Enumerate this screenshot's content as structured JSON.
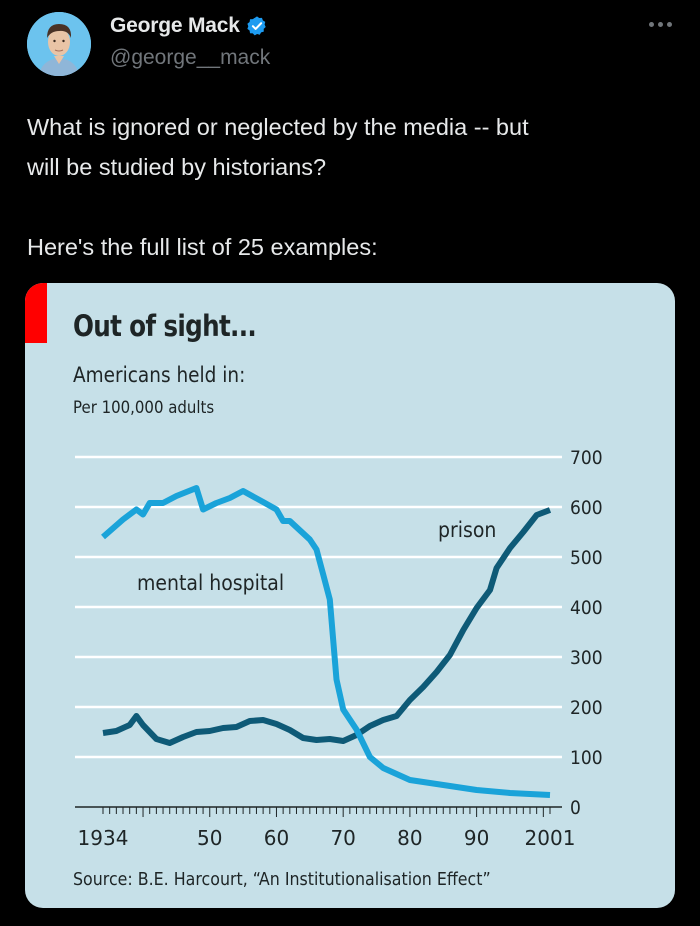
{
  "tweet": {
    "author_name": "George Mack",
    "author_handle": "@george__mack",
    "verified": true,
    "text_lines": [
      "What is ignored or neglected by the media -- but",
      "will be studied by historians?"
    ],
    "text_line_2": "Here's the full list of 25 examples:",
    "more_icon": "more-horizontal-icon"
  },
  "colors": {
    "background": "#000000",
    "verified_badge": "#1d9bf0",
    "chart_background": "#c6e0e8",
    "accent_red": "#ff0000",
    "mental_hospital_line": "#1aa3d9",
    "prison_line": "#0e5a77"
  },
  "chart_data": {
    "type": "line",
    "title": "Out of sight...",
    "subtitle": "Americans held in:",
    "unit_label": "Per 100,000 adults",
    "source": "Source: B.E. Harcourt, “An Institutionalisation Effect”",
    "xlabel": "",
    "ylabel": "",
    "xlim": [
      1934,
      2001
    ],
    "ylim": [
      0,
      700
    ],
    "x_ticks": [
      {
        "value": 1934,
        "label": "1934"
      },
      {
        "value": 1950,
        "label": "50"
      },
      {
        "value": 1960,
        "label": "60"
      },
      {
        "value": 1970,
        "label": "70"
      },
      {
        "value": 1980,
        "label": "80"
      },
      {
        "value": 1990,
        "label": "90"
      },
      {
        "value": 2001,
        "label": "2001"
      }
    ],
    "y_ticks": [
      {
        "value": 0,
        "label": "0"
      },
      {
        "value": 100,
        "label": "100"
      },
      {
        "value": 200,
        "label": "200"
      },
      {
        "value": 300,
        "label": "300"
      },
      {
        "value": 400,
        "label": "400"
      },
      {
        "value": 500,
        "label": "500"
      },
      {
        "value": 600,
        "label": "600"
      },
      {
        "value": 700,
        "label": "700"
      }
    ],
    "grid": true,
    "legend": "inline-labels",
    "series": [
      {
        "name": "mental hospital",
        "label_position": "left-of-line",
        "x": [
          1934,
          1937,
          1939,
          1940,
          1941,
          1943,
          1945,
          1948,
          1949,
          1951,
          1953,
          1955,
          1958,
          1960,
          1961,
          1962,
          1965,
          1966,
          1967,
          1968,
          1969,
          1970,
          1972,
          1974,
          1976,
          1980,
          1985,
          1990,
          1995,
          2001
        ],
        "values": [
          540,
          575,
          595,
          585,
          608,
          608,
          622,
          638,
          595,
          608,
          618,
          632,
          610,
          595,
          572,
          572,
          535,
          515,
          465,
          415,
          255,
          195,
          155,
          100,
          78,
          54,
          44,
          34,
          28,
          24
        ]
      },
      {
        "name": "prison",
        "label_position": "left-of-line-top",
        "x": [
          1934,
          1936,
          1938,
          1939,
          1940,
          1942,
          1944,
          1946,
          1948,
          1950,
          1952,
          1954,
          1956,
          1958,
          1960,
          1962,
          1964,
          1966,
          1968,
          1970,
          1972,
          1974,
          1976,
          1978,
          1980,
          1982,
          1984,
          1986,
          1988,
          1990,
          1992,
          1993,
          1995,
          1997,
          1999,
          2001
        ],
        "values": [
          148,
          152,
          164,
          182,
          164,
          136,
          128,
          140,
          150,
          152,
          158,
          160,
          172,
          174,
          166,
          154,
          138,
          134,
          136,
          132,
          144,
          162,
          174,
          182,
          214,
          240,
          270,
          304,
          354,
          398,
          434,
          478,
          518,
          550,
          584,
          594
        ]
      }
    ]
  }
}
